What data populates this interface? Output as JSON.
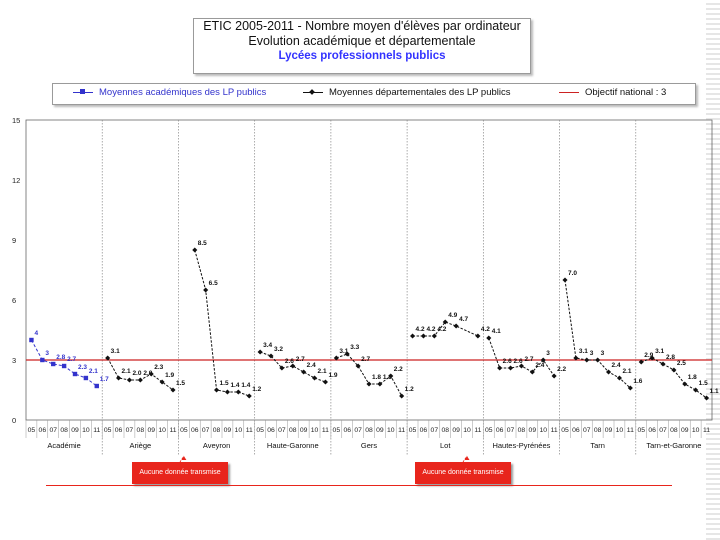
{
  "title": {
    "line1": "ETIC 2005-2011 - Nombre moyen d'élèves par ordinateur",
    "line2": "Evolution académique et départementale",
    "line3": "Lycées professionnels publics"
  },
  "legend": {
    "academie": "Moyennes académiques des LP publics",
    "departements": "Moyennes départementales des LP  publics",
    "objectif": "Objectif national : 3"
  },
  "notes": {
    "aveyron": "Aucune donnée transmise",
    "lot": "Aucune donnée transmise"
  },
  "colors": {
    "academie": "#3333cc",
    "departements": "#111111",
    "objectif": "#cc2222",
    "note_bg": "#e8251c"
  },
  "chart_data": {
    "type": "line",
    "ylim": [
      0,
      15
    ],
    "y_ticks": [
      0,
      3,
      6,
      9,
      12,
      15
    ],
    "target": 3,
    "year_labels": [
      "05",
      "06",
      "07",
      "08",
      "09",
      "10",
      "11"
    ],
    "groups": [
      {
        "name": "Académie",
        "values": [
          4,
          3,
          2.8,
          2.7,
          2.3,
          2.1,
          1.7
        ],
        "labels": [
          "4",
          "3",
          "2.8",
          "2.7",
          "2.3",
          "2.1",
          "1.7"
        ]
      },
      {
        "name": "Ariège",
        "values": [
          3.1,
          2.1,
          2.0,
          2.0,
          2.3,
          1.9,
          1.5
        ],
        "labels": [
          "3.1",
          "2.1",
          "2.0",
          "2.0",
          "2.3",
          "1.9",
          "1.5"
        ]
      },
      {
        "name": "Aveyron",
        "values": [
          null,
          8.5,
          6.5,
          1.5,
          1.4,
          1.4,
          1.2
        ],
        "labels": [
          "",
          "8.5",
          "6.5",
          "1.5",
          "1.4",
          "1.4",
          "1.2"
        ]
      },
      {
        "name": "Haute-Garonne",
        "values": [
          3.4,
          3.2,
          2.6,
          2.7,
          2.4,
          2.1,
          1.9
        ],
        "labels": [
          "3.4",
          "3.2",
          "2.6",
          "2.7",
          "2.4",
          "2.1",
          "1.9"
        ]
      },
      {
        "name": "Gers",
        "values": [
          3.1,
          3.3,
          2.7,
          1.8,
          1.8,
          2.2,
          1.2
        ],
        "labels": [
          "3.1",
          "3.3",
          "2.7",
          "1.8",
          "1.8",
          "2.2",
          "1.2"
        ]
      },
      {
        "name": "Lot",
        "values": [
          4.2,
          4.2,
          4.2,
          4.9,
          4.7,
          null,
          4.2
        ],
        "labels": [
          "4.2",
          "4.2",
          "4.2",
          "4.9",
          "4.7",
          "",
          "4.2"
        ]
      },
      {
        "name": "Hautes-Pyrénées",
        "values": [
          4.1,
          2.6,
          2.6,
          2.7,
          2.4,
          3,
          2.2
        ],
        "labels": [
          "4.1",
          "2.6",
          "2.6",
          "2.7",
          "2.4",
          "3",
          "2.2"
        ]
      },
      {
        "name": "Tarn",
        "values": [
          7.0,
          3.1,
          3,
          3,
          2.4,
          2.1,
          1.6
        ],
        "labels": [
          "7.0",
          "3.1",
          "3",
          "3",
          "2.4",
          "2.1",
          "1.6"
        ]
      },
      {
        "name": "Tarn-et-Garonne",
        "values": [
          2.9,
          3.1,
          2.8,
          2.5,
          1.8,
          1.5,
          1.1
        ],
        "labels": [
          "2.9",
          "3.1",
          "2.8",
          "2.5",
          "1.8",
          "1.5",
          "1.1"
        ]
      }
    ]
  }
}
